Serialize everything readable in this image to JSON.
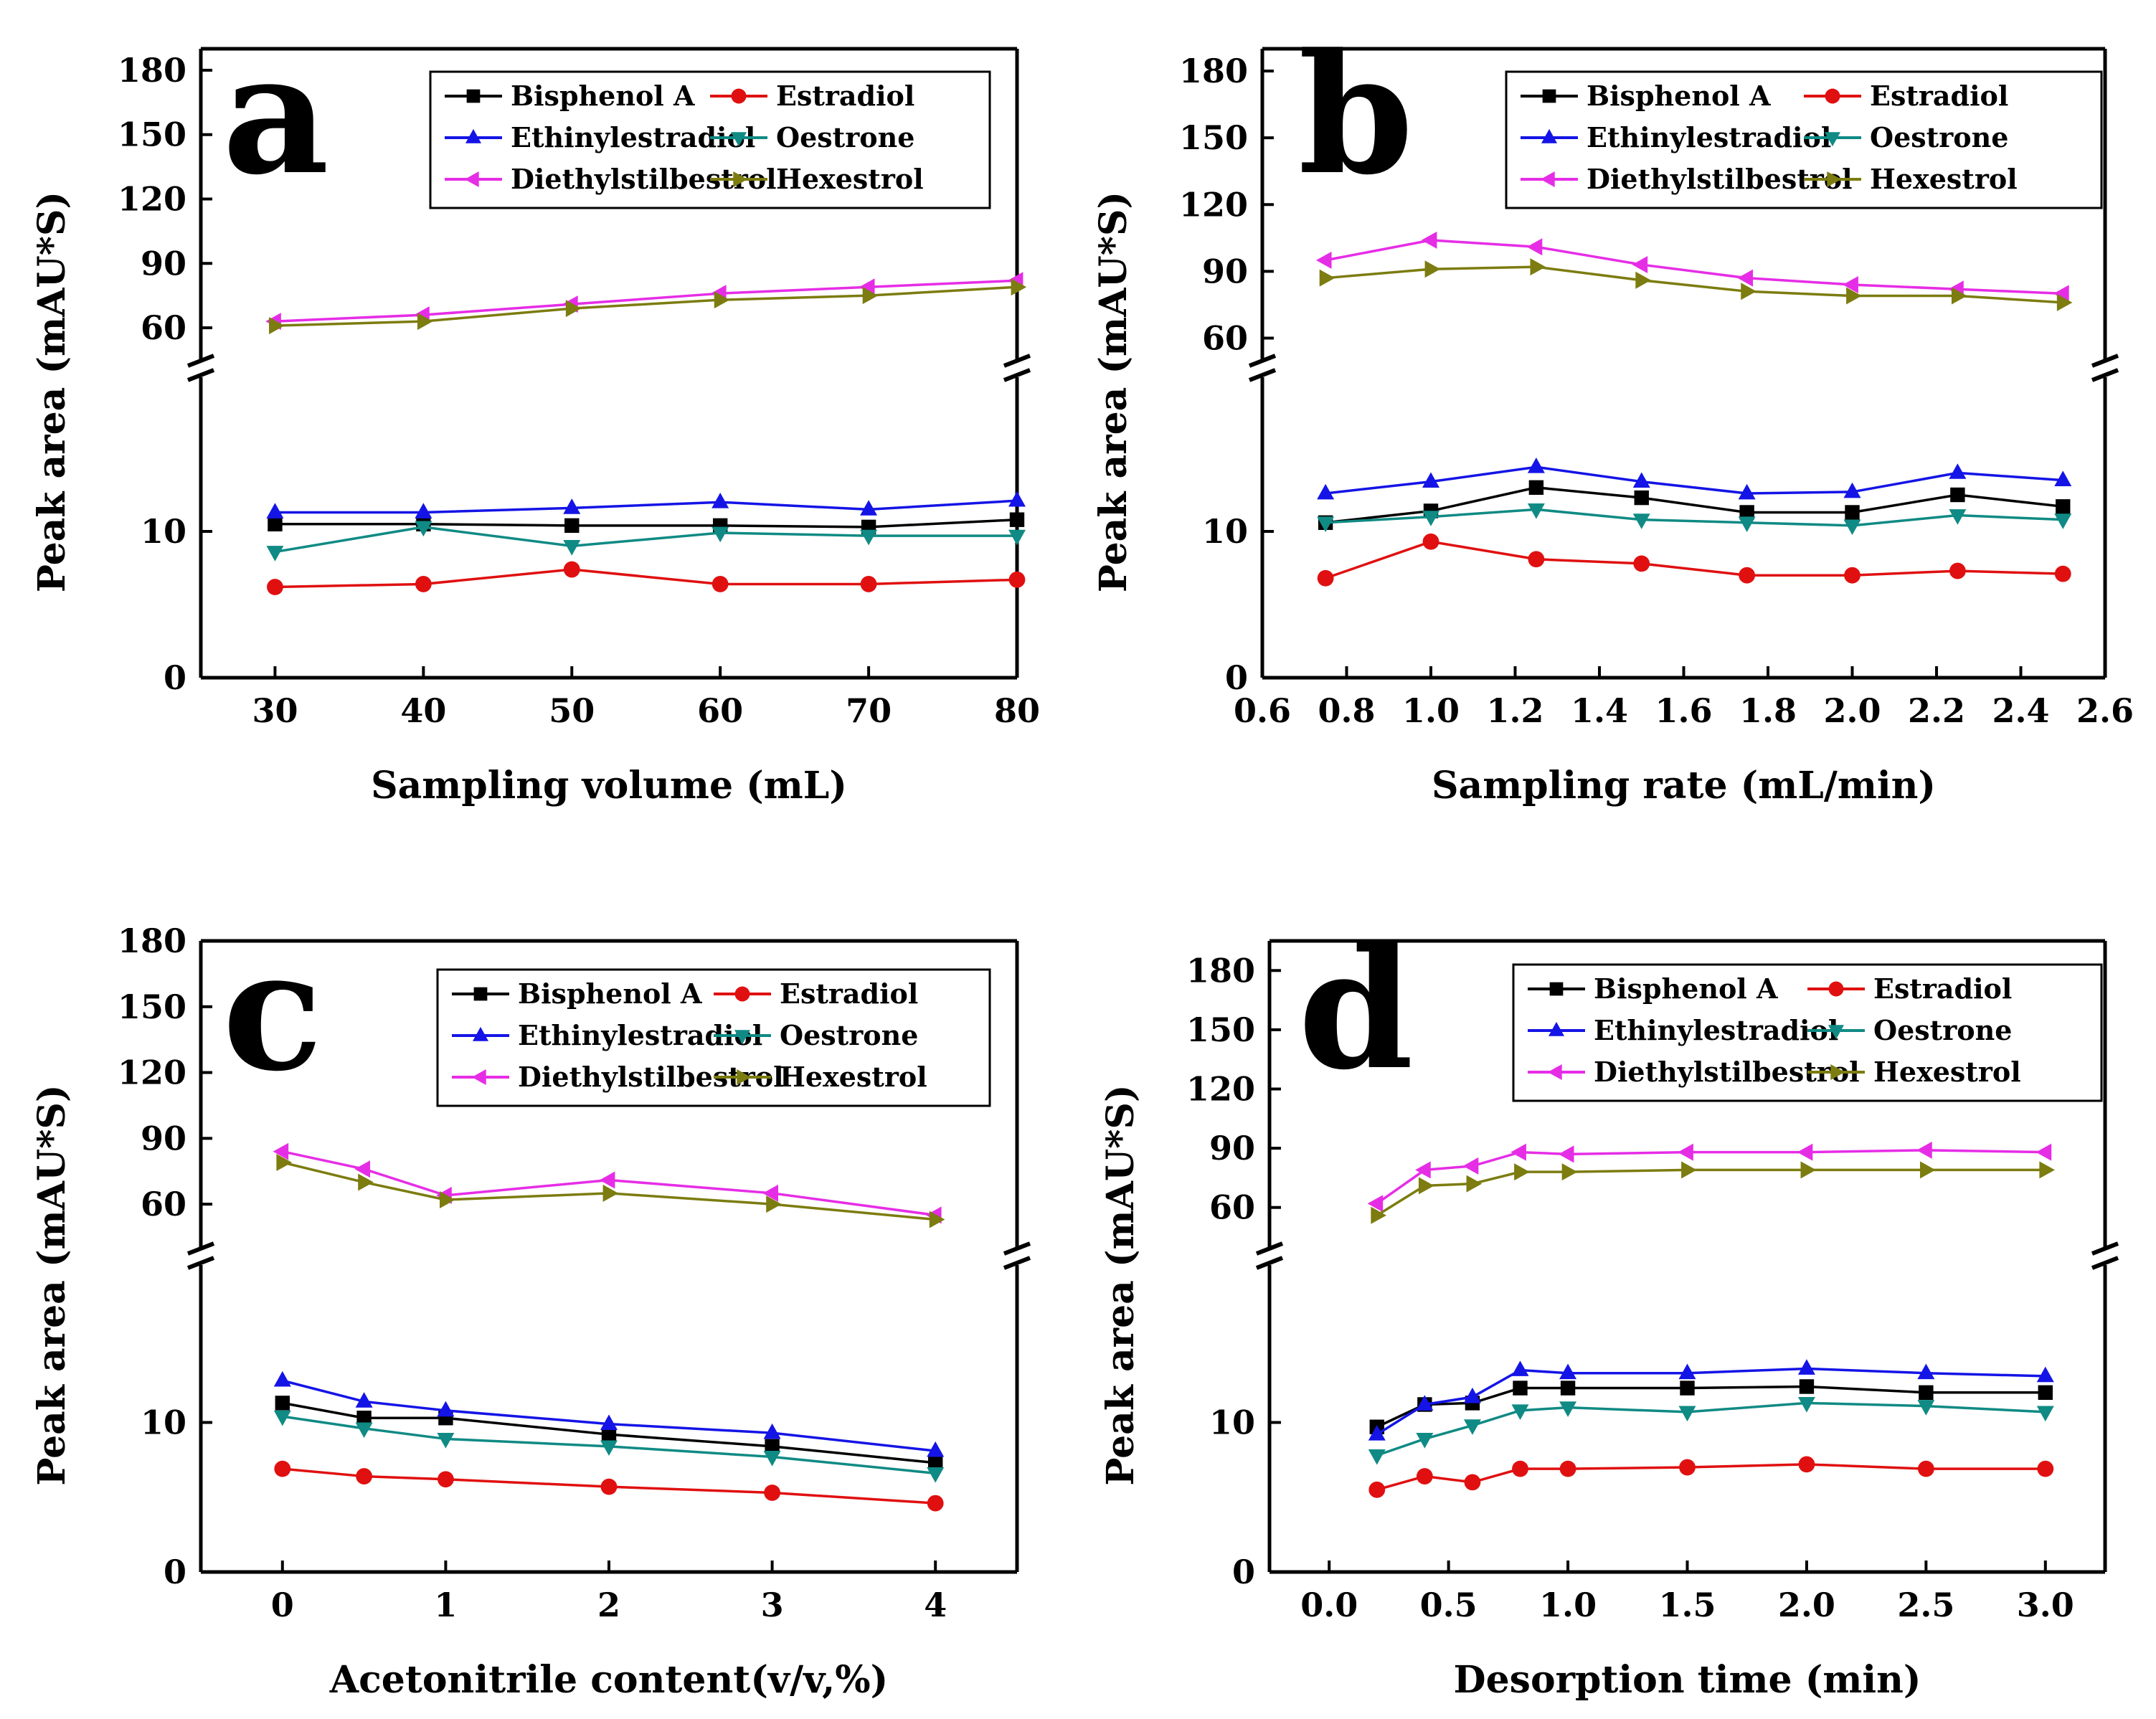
{
  "chart_data": [
    {
      "type": "line",
      "panel_label": "a",
      "xlabel": "Sampling volume (mL)",
      "ylabel": "Peak area (mAU*S)",
      "xlim": [
        25,
        80
      ],
      "xticks": [
        "30",
        "40",
        "50",
        "60",
        "70",
        "80"
      ],
      "yticks_upper": [
        "60",
        "90",
        "120",
        "150",
        "180"
      ],
      "yticks_lower": [
        "0",
        "10"
      ],
      "ylim_lower": [
        0,
        20
      ],
      "ylim_upper": [
        50,
        190
      ],
      "x": [
        30,
        40,
        50,
        60,
        70,
        80
      ],
      "series": [
        {
          "name": "Bisphenol A",
          "values": [
            10.5,
            10.5,
            10.4,
            10.4,
            10.3,
            10.8
          ]
        },
        {
          "name": "Estradiol",
          "values": [
            6.2,
            6.4,
            7.4,
            6.4,
            6.4,
            6.7
          ]
        },
        {
          "name": "Ethinylestradiol",
          "values": [
            11.3,
            11.3,
            11.6,
            12.0,
            11.5,
            12.1
          ]
        },
        {
          "name": "Oestrone",
          "values": [
            8.6,
            10.3,
            9.0,
            9.9,
            9.7,
            9.7
          ]
        },
        {
          "name": "Diethylstilbestrol",
          "values": [
            63,
            66,
            71,
            76,
            79,
            82
          ]
        },
        {
          "name": "Hexestrol",
          "values": [
            61,
            63,
            69,
            73,
            75,
            79
          ]
        }
      ]
    },
    {
      "type": "line",
      "panel_label": "b",
      "xlabel": "Sampling rate (mL/min)",
      "ylabel": "Peak area (mAU*S)",
      "xlim": [
        0.6,
        2.6
      ],
      "xticks": [
        "0.6",
        "0.8",
        "1.0",
        "1.2",
        "1.4",
        "1.6",
        "1.8",
        "2.0",
        "2.2",
        "2.4",
        "2.6"
      ],
      "yticks_upper": [
        "60",
        "90",
        "120",
        "150",
        "180"
      ],
      "yticks_lower": [
        "0",
        "10"
      ],
      "ylim_lower": [
        0,
        20
      ],
      "ylim_upper": [
        55,
        190
      ],
      "x": [
        0.75,
        1.0,
        1.25,
        1.5,
        1.75,
        2.0,
        2.25,
        2.5
      ],
      "series": [
        {
          "name": "Bisphenol A",
          "values": [
            10.6,
            11.4,
            13.0,
            12.3,
            11.3,
            11.3,
            12.5,
            11.7
          ]
        },
        {
          "name": "Estradiol",
          "values": [
            6.8,
            9.3,
            8.1,
            7.8,
            7.0,
            7.0,
            7.3,
            7.1
          ]
        },
        {
          "name": "Ethinylestradiol",
          "values": [
            12.6,
            13.4,
            14.4,
            13.4,
            12.6,
            12.7,
            14.0,
            13.5
          ]
        },
        {
          "name": "Oestrone",
          "values": [
            10.6,
            11.0,
            11.5,
            10.8,
            10.6,
            10.4,
            11.1,
            10.8
          ]
        },
        {
          "name": "Diethylstilbestrol",
          "values": [
            95,
            104,
            101,
            93,
            87,
            84,
            82,
            80
          ]
        },
        {
          "name": "Hexestrol",
          "values": [
            87,
            91,
            92,
            86,
            81,
            79,
            79,
            76
          ]
        }
      ]
    },
    {
      "type": "line",
      "panel_label": "c",
      "xlabel": "Acetonitrile content(v/v,%)",
      "ylabel": "Peak area (mAU*S)",
      "xlim": [
        -0.5,
        4.5
      ],
      "xticks": [
        "0",
        "1",
        "2",
        "3",
        "4"
      ],
      "yticks_upper": [
        "60",
        "90",
        "120",
        "150",
        "180"
      ],
      "yticks_lower": [
        "0",
        "10"
      ],
      "ylim_lower": [
        0,
        20
      ],
      "ylim_upper": [
        45,
        180
      ],
      "x": [
        0,
        0.5,
        1,
        2,
        3,
        4
      ],
      "series": [
        {
          "name": "Bisphenol A",
          "values": [
            11.3,
            10.3,
            10.3,
            9.2,
            8.4,
            7.3
          ]
        },
        {
          "name": "Estradiol",
          "values": [
            6.9,
            6.4,
            6.2,
            5.7,
            5.3,
            4.6
          ]
        },
        {
          "name": "Ethinylestradiol",
          "values": [
            12.8,
            11.4,
            10.8,
            9.9,
            9.3,
            8.1
          ]
        },
        {
          "name": "Oestrone",
          "values": [
            10.4,
            9.6,
            8.9,
            8.4,
            7.7,
            6.6
          ]
        },
        {
          "name": "Diethylstilbestrol",
          "values": [
            84,
            76,
            64,
            71,
            65,
            55
          ]
        },
        {
          "name": "Hexestrol",
          "values": [
            79,
            70,
            62,
            65,
            60,
            53
          ]
        }
      ]
    },
    {
      "type": "line",
      "panel_label": "d",
      "xlabel": "Desorption time (min)",
      "ylabel": "Peak area (mAU*S)",
      "xlim": [
        -0.25,
        3.25
      ],
      "xticks": [
        "0.0",
        "0.5",
        "1.0",
        "1.5",
        "2.0",
        "2.5",
        "3.0"
      ],
      "yticks_upper": [
        "60",
        "90",
        "120",
        "150",
        "180"
      ],
      "yticks_lower": [
        "0",
        "10"
      ],
      "ylim_lower": [
        0,
        20
      ],
      "ylim_upper": [
        45,
        195
      ],
      "x": [
        0.2,
        0.4,
        0.6,
        0.8,
        1.0,
        1.5,
        2.0,
        2.5,
        3.0
      ],
      "series": [
        {
          "name": "Bisphenol A",
          "values": [
            9.7,
            11.2,
            11.3,
            12.3,
            12.3,
            12.3,
            12.4,
            12.0,
            12.0
          ]
        },
        {
          "name": "Estradiol",
          "values": [
            5.5,
            6.4,
            6.0,
            6.9,
            6.9,
            7.0,
            7.2,
            6.9,
            6.9
          ]
        },
        {
          "name": "Ethinylestradiol",
          "values": [
            9.2,
            11.2,
            11.7,
            13.5,
            13.3,
            13.3,
            13.6,
            13.3,
            13.1
          ]
        },
        {
          "name": "Oestrone",
          "values": [
            7.8,
            8.9,
            9.8,
            10.8,
            11.0,
            10.7,
            11.3,
            11.1,
            10.7
          ]
        },
        {
          "name": "Diethylstilbestrol",
          "values": [
            62,
            79,
            81,
            88,
            87,
            88,
            88,
            89,
            88
          ]
        },
        {
          "name": "Hexestrol",
          "values": [
            56,
            71,
            72,
            78,
            78,
            79,
            79,
            79,
            79
          ]
        }
      ]
    }
  ],
  "legend": {
    "labels": [
      "Bisphenol A",
      "Estradiol",
      "Ethinylestradiol",
      "Oestrone",
      "Diethylstilbestrol",
      "Hexestrol"
    ]
  },
  "colors": {
    "Bisphenol A": "#000000",
    "Estradiol": "#e01010",
    "Ethinylestradiol": "#1414e6",
    "Oestrone": "#108a84",
    "Diethylstilbestrol": "#e62de6",
    "Hexestrol": "#7c7c10"
  },
  "markers": {
    "Bisphenol A": "square",
    "Estradiol": "circle",
    "Ethinylestradiol": "triangle-up",
    "Oestrone": "triangle-down",
    "Diethylstilbestrol": "triangle-left",
    "Hexestrol": "triangle-right"
  }
}
